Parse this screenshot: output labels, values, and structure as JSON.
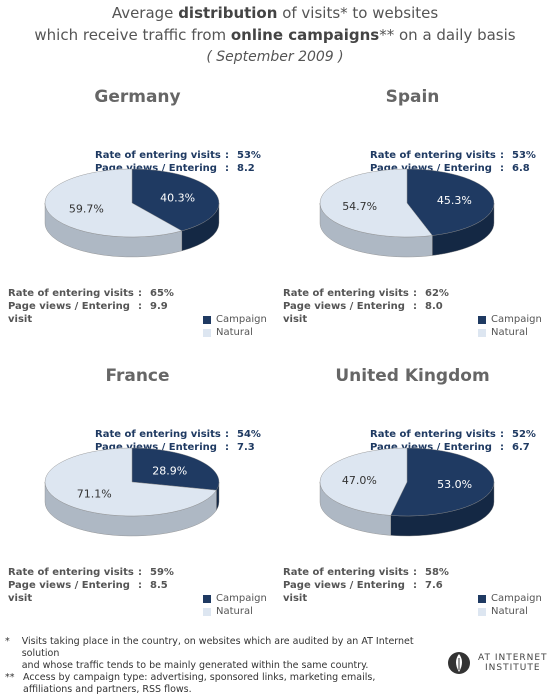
{
  "header": {
    "line1_pre": "Average ",
    "line1_bold": "distribution",
    "line1_post": " of visits* to websites",
    "line2_pre": "which receive traffic from ",
    "line2_bold": "online campaigns",
    "line2_post": "** on a daily basis",
    "line3": "( September  2009 )"
  },
  "legend": {
    "campaign": "Campaign",
    "natural": "Natural"
  },
  "colors": {
    "campaign": "#1f3a62",
    "natural": "#dde6f1",
    "campaign_side": "#142844",
    "natural_side": "#aeb8c4"
  },
  "stat_labels": {
    "rate": "Rate of entering visits",
    "pages": "Page views / Entering visit",
    "colon": ":"
  },
  "chart_data": [
    {
      "type": "pie",
      "title": "Germany",
      "categories": [
        "Campaign",
        "Natural"
      ],
      "values": [
        40.3,
        59.7
      ],
      "value_labels": [
        "40.3%",
        "59.7%"
      ],
      "campaign_stats": {
        "rate": "53%",
        "pages": "8.2"
      },
      "natural_stats": {
        "rate": "65%",
        "pages": "9.9"
      }
    },
    {
      "type": "pie",
      "title": "Spain",
      "categories": [
        "Campaign",
        "Natural"
      ],
      "values": [
        45.3,
        54.7
      ],
      "value_labels": [
        "45.3%",
        "54.7%"
      ],
      "campaign_stats": {
        "rate": "53%",
        "pages": "6.8"
      },
      "natural_stats": {
        "rate": "62%",
        "pages": "8.0"
      }
    },
    {
      "type": "pie",
      "title": "France",
      "categories": [
        "Campaign",
        "Natural"
      ],
      "values": [
        28.9,
        71.1
      ],
      "value_labels": [
        "28.9%",
        "71.1%"
      ],
      "campaign_stats": {
        "rate": "54%",
        "pages": "7.3"
      },
      "natural_stats": {
        "rate": "59%",
        "pages": "8.5"
      }
    },
    {
      "type": "pie",
      "title": "United Kingdom",
      "categories": [
        "Campaign",
        "Natural"
      ],
      "values": [
        53.0,
        47.0
      ],
      "value_labels": [
        "53.0%",
        "47.0%"
      ],
      "campaign_stats": {
        "rate": "52%",
        "pages": "6.7"
      },
      "natural_stats": {
        "rate": "58%",
        "pages": "7.6"
      }
    }
  ],
  "footnotes": [
    {
      "mark": "*",
      "lines": [
        "Visits taking place in the country, on websites which are audited by an AT Internet solution",
        "and whose traffic tends to be mainly generated within the same country."
      ]
    },
    {
      "mark": "**",
      "lines": [
        "Access by campaign type: advertising, sponsored links, marketing emails,",
        "affiliations and partners, RSS flows."
      ]
    }
  ],
  "logo": {
    "line1": "AT INTERNET",
    "line2": "INSTITUTE"
  }
}
